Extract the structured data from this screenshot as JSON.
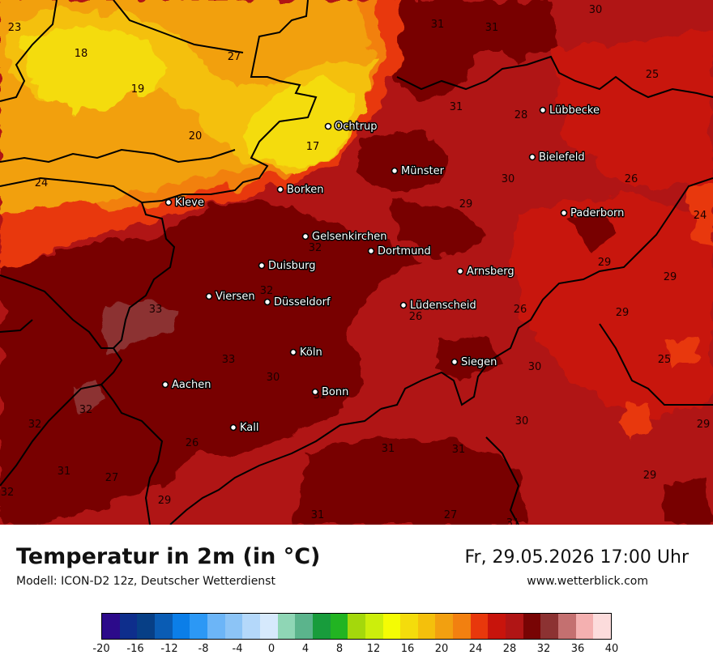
{
  "header": {
    "title": "Temperatur in 2m (in °C)",
    "model": "Modell: ICON-D2 12z, Deutscher Wetterdienst",
    "datetime": "Fr, 29.05.2026 17:00 Uhr",
    "site": "www.wetterblick.com"
  },
  "map": {
    "background_color": "#b01515",
    "cities": [
      {
        "name": "Lübbecke"
      },
      {
        "name": "Ochtrup"
      },
      {
        "name": "Bielefeld"
      },
      {
        "name": "Münster"
      },
      {
        "name": "Borken"
      },
      {
        "name": "Kleve"
      },
      {
        "name": "Paderborn"
      },
      {
        "name": "Gelsenkirchen"
      },
      {
        "name": "Dortmund"
      },
      {
        "name": "Duisburg"
      },
      {
        "name": "Arnsberg"
      },
      {
        "name": "Viersen"
      },
      {
        "name": "Düsseldorf"
      },
      {
        "name": "Lüdenscheid"
      },
      {
        "name": "Köln"
      },
      {
        "name": "Siegen"
      },
      {
        "name": "Aachen"
      },
      {
        "name": "Bonn"
      },
      {
        "name": "Kall"
      }
    ],
    "values": [
      "30",
      "23",
      "31",
      "31",
      "18",
      "27",
      "25",
      "19",
      "31",
      "28",
      "20",
      "17",
      "24",
      "30",
      "26",
      "29",
      "24",
      "32",
      "29",
      "29",
      "33",
      "26",
      "29",
      "32",
      "26",
      "25",
      "33",
      "30",
      "30",
      "32",
      "32",
      "30",
      "29",
      "32",
      "26",
      "31",
      "31",
      "31",
      "27",
      "29",
      "32",
      "29",
      "31",
      "27",
      "31"
    ]
  },
  "legend": {
    "unit": "°C",
    "colors": [
      "#2c0a8a",
      "#0e2e8c",
      "#073f86",
      "#0a5cb4",
      "#0b7ee8",
      "#2c98f5",
      "#6cb5f7",
      "#8cc4f6",
      "#b4d8fa",
      "#d6e9fc",
      "#8fd6b5",
      "#5bb48c",
      "#189c3c",
      "#22b422",
      "#a4d80c",
      "#ccee0c",
      "#f4fc04",
      "#f4dc0c",
      "#f4c00c",
      "#f2a010",
      "#f28010",
      "#e8380c",
      "#c8140c",
      "#b01515",
      "#780404",
      "#8c3232",
      "#c47070",
      "#f4b0b0",
      "#fcdcdc"
    ],
    "ticks": [
      "-20",
      "-16",
      "-12",
      "-8",
      "-4",
      "0",
      "4",
      "8",
      "12",
      "16",
      "20",
      "24",
      "28",
      "32",
      "36",
      "40"
    ]
  }
}
